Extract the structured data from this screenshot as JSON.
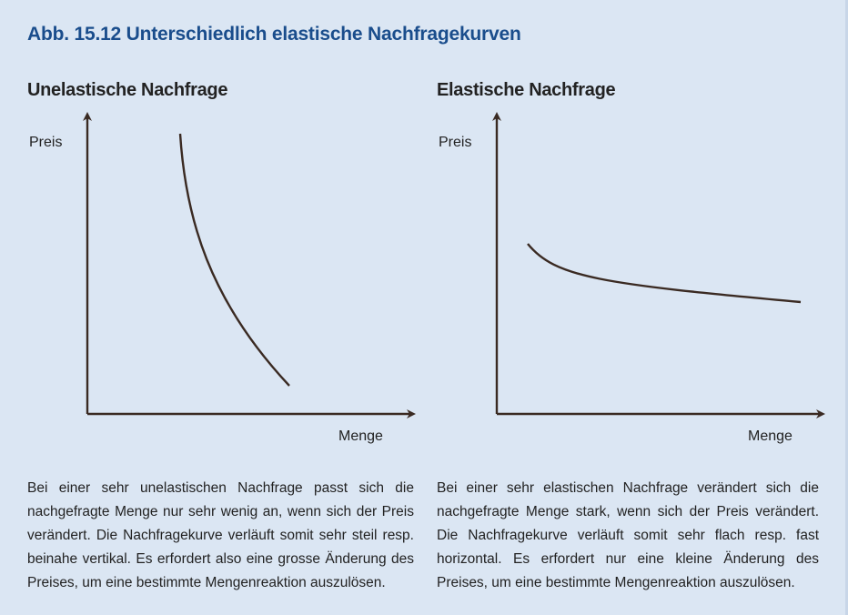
{
  "figure": {
    "title": "Abb. 15.12  Unterschiedlich elastische Nachfragekurven"
  },
  "panels": [
    {
      "title": "Unelastische Nachfrage",
      "y_label": "Preis",
      "x_label": "Menge",
      "caption": "Bei einer sehr unelastischen Nachfrage passt sich die nachgefragte Menge nur sehr wenig an, wenn sich der Preis verändert. Die Nachfragekurve verläuft somit sehr steil resp. beinahe vertikal. Es erfordert also eine grosse Änderung des Preises, um eine bestimmte Mengenreaktion auszulösen."
    },
    {
      "title": "Elastische Nachfrage",
      "y_label": "Preis",
      "x_label": "Menge",
      "caption": "Bei einer sehr elastischen Nachfrage verändert sich die nachgefragte Menge stark, wenn sich der Preis verändert. Die Nachfragekurve verläuft somit sehr flach resp. fast horizontal. Es erfordert nur eine kleine Änderung des Preises, um eine bestimmte Mengenreaktion auszulösen."
    }
  ],
  "colors": {
    "background": "#dbe6f3",
    "title": "#1a4d8c",
    "ink": "#222222",
    "curve": "#3a2a22"
  }
}
